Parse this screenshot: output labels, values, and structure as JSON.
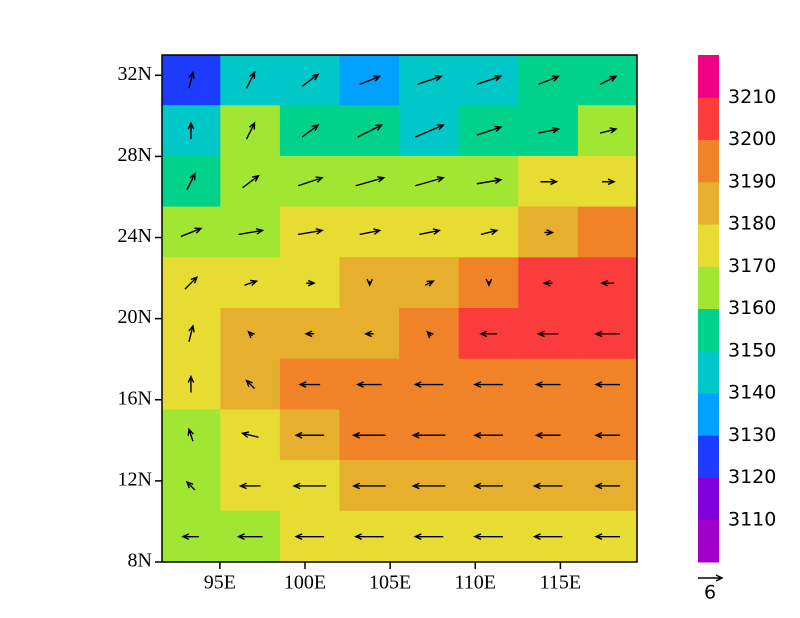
{
  "chart_data": {
    "type": "map",
    "xlim": [
      91.6,
      119.5
    ],
    "ylim": [
      8,
      33
    ],
    "xticks": [
      {
        "value": 95,
        "label": "95E"
      },
      {
        "value": 100,
        "label": "100E"
      },
      {
        "value": 105,
        "label": "105E"
      },
      {
        "value": 110,
        "label": "110E"
      },
      {
        "value": 115,
        "label": "115E"
      }
    ],
    "yticks": [
      {
        "value": 8,
        "label": "8N"
      },
      {
        "value": 12,
        "label": "12N"
      },
      {
        "value": 16,
        "label": "16N"
      },
      {
        "value": 20,
        "label": "20N"
      },
      {
        "value": 24,
        "label": "24N"
      },
      {
        "value": 28,
        "label": "28N"
      },
      {
        "value": 32,
        "label": "32N"
      }
    ],
    "colorbar": {
      "levels": [
        3110,
        3120,
        3130,
        3140,
        3150,
        3160,
        3170,
        3180,
        3190,
        3200,
        3210
      ],
      "colors": [
        "#a000c8",
        "#8200dc",
        "#1e3cff",
        "#00a0ff",
        "#00c8c8",
        "#00d28c",
        "#a0e632",
        "#e6dc32",
        "#e6af2d",
        "#f08228",
        "#fa3c3c",
        "#f00082"
      ]
    },
    "field": {
      "lon": [
        93.3,
        96.8,
        100.3,
        103.8,
        107.3,
        110.8,
        114.3,
        117.8
      ],
      "lat": [
        31.75,
        29.25,
        26.75,
        24.25,
        21.75,
        19.25,
        16.75,
        14.25,
        11.75,
        9.25
      ],
      "values": [
        [
          3128,
          3142,
          3145,
          3138,
          3140,
          3145,
          3150,
          3152
        ],
        [
          3145,
          3162,
          3155,
          3150,
          3148,
          3152,
          3158,
          3165
        ],
        [
          3155,
          3165,
          3162,
          3160,
          3160,
          3165,
          3172,
          3178
        ],
        [
          3165,
          3168,
          3170,
          3170,
          3172,
          3178,
          3185,
          3195
        ],
        [
          3172,
          3175,
          3178,
          3182,
          3188,
          3195,
          3205,
          3205
        ],
        [
          3175,
          3182,
          3185,
          3188,
          3192,
          3203,
          3205,
          3205
        ],
        [
          3175,
          3182,
          3192,
          3193,
          3195,
          3198,
          3198,
          3198
        ],
        [
          3168,
          3175,
          3185,
          3192,
          3192,
          3195,
          3195,
          3195
        ],
        [
          3165,
          3170,
          3178,
          3182,
          3185,
          3188,
          3188,
          3185
        ],
        [
          3162,
          3168,
          3175,
          3178,
          3178,
          3178,
          3178,
          3175
        ]
      ]
    },
    "wind": {
      "u": [
        [
          1,
          2,
          4,
          5,
          6,
          6,
          5,
          4
        ],
        [
          0,
          2,
          4,
          6,
          7,
          6,
          5,
          4
        ],
        [
          2,
          4,
          6,
          7,
          7,
          6,
          4,
          3
        ],
        [
          5,
          6,
          6,
          5,
          5,
          4,
          2,
          0
        ],
        [
          3,
          3,
          2,
          0,
          2,
          0,
          -2,
          -3
        ],
        [
          1,
          -1,
          -2,
          -2,
          -1,
          -4,
          -5,
          -6
        ],
        [
          0,
          -2,
          -5,
          -6,
          -7,
          -7,
          -6,
          -6
        ],
        [
          -1,
          -4,
          -7,
          -8,
          -8,
          -7,
          -6,
          -6
        ],
        [
          -2,
          -5,
          -8,
          -8,
          -8,
          -7,
          -7,
          -6
        ],
        [
          -4,
          -6,
          -7,
          -7,
          -7,
          -7,
          -7,
          -6
        ]
      ],
      "v": [
        [
          4,
          4,
          3,
          2,
          2,
          2,
          2,
          2
        ],
        [
          4,
          4,
          3,
          3,
          3,
          2,
          1,
          1
        ],
        [
          4,
          3,
          2,
          2,
          2,
          1,
          0,
          0
        ],
        [
          2,
          1,
          1,
          1,
          1,
          1,
          0,
          0
        ],
        [
          3,
          1,
          0,
          -1,
          1,
          -1,
          0,
          0
        ],
        [
          4,
          1,
          0,
          0,
          1,
          0,
          0,
          0
        ],
        [
          4,
          2,
          0,
          0,
          0,
          0,
          0,
          0
        ],
        [
          3,
          1,
          0,
          0,
          0,
          0,
          0,
          0
        ],
        [
          2,
          0,
          0,
          0,
          0,
          0,
          0,
          0
        ],
        [
          0,
          0,
          0,
          0,
          0,
          0,
          0,
          0
        ]
      ],
      "reference_vector": 6
    }
  }
}
